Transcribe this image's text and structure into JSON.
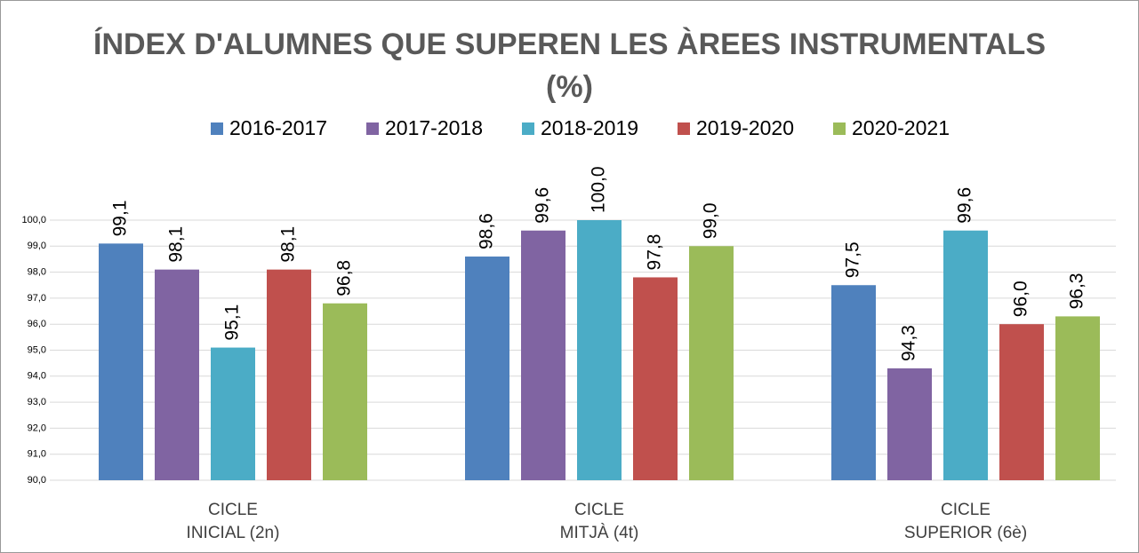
{
  "chart_data": {
    "type": "bar",
    "title": "ÍNDEX D'ALUMNES QUE SUPEREN LES ÀREES INSTRUMENTALS\n(%)",
    "categories": [
      "CICLE\nINICIAL (2n)",
      "CICLE\nMITJÀ (4t)",
      "CICLE\nSUPERIOR (6è)"
    ],
    "series": [
      {
        "name": "2016-2017",
        "color": "#4f81bd",
        "values": [
          99.1,
          98.6,
          97.5
        ],
        "value_labels": [
          "99,1",
          "98,6",
          "97,5"
        ]
      },
      {
        "name": "2017-2018",
        "color": "#8064a2",
        "values": [
          98.1,
          99.6,
          94.3
        ],
        "value_labels": [
          "98,1",
          "99,6",
          "94,3"
        ]
      },
      {
        "name": "2018-2019",
        "color": "#4bacc6",
        "values": [
          95.1,
          100.0,
          99.6
        ],
        "value_labels": [
          "95,1",
          "100,0",
          "99,6"
        ]
      },
      {
        "name": "2019-2020",
        "color": "#c0504d",
        "values": [
          98.1,
          97.8,
          96.0
        ],
        "value_labels": [
          "98,1",
          "97,8",
          "96,0"
        ]
      },
      {
        "name": "2020-2021",
        "color": "#9bbb59",
        "values": [
          96.8,
          99.0,
          96.3
        ],
        "value_labels": [
          "96,8",
          "99,0",
          "96,3"
        ]
      }
    ],
    "ylim": [
      90,
      100
    ],
    "yticks": [
      {
        "value": 90,
        "label": "90,0"
      },
      {
        "value": 91,
        "label": "91,0"
      },
      {
        "value": 92,
        "label": "92,0"
      },
      {
        "value": 93,
        "label": "93,0"
      },
      {
        "value": 94,
        "label": "94,0"
      },
      {
        "value": 95,
        "label": "95,0"
      },
      {
        "value": 96,
        "label": "96,0"
      },
      {
        "value": 97,
        "label": "97,0"
      },
      {
        "value": 98,
        "label": "98,0"
      },
      {
        "value": 99,
        "label": "99,0"
      },
      {
        "value": 100,
        "label": "100,0"
      }
    ],
    "grid": true,
    "legend": "top"
  }
}
